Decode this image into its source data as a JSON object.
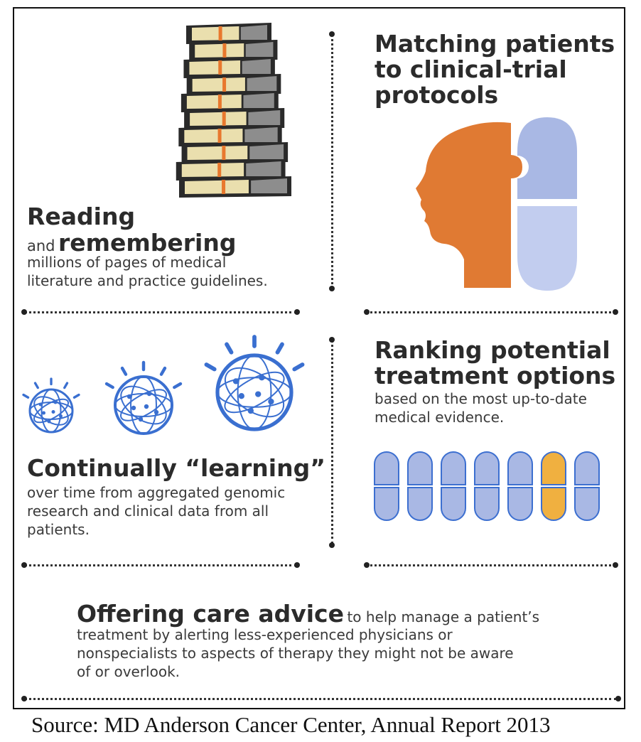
{
  "sections": {
    "reading": {
      "title": "Reading",
      "connector": "and",
      "title2": "remembering",
      "desc_lines": [
        "millions of pages of medical",
        "literature and practice guidelines."
      ]
    },
    "matching": {
      "title_lines": [
        "Matching patients",
        "to clinical-trial",
        "protocols"
      ]
    },
    "learning": {
      "title": "Continually “learning”",
      "desc_lines": [
        "over time from aggregated genomic",
        "research and clinical data from all",
        "patients."
      ]
    },
    "ranking": {
      "title_lines": [
        "Ranking potential",
        "treatment options"
      ],
      "desc_lines": [
        "based on the most up-to-date",
        "medical evidence."
      ],
      "pill_count": 7,
      "highlighted_index": 5
    },
    "advice": {
      "title": "Offering care advice",
      "first_line_rest": "to help manage a patient’s",
      "desc_lines": [
        "treatment by alerting less-experienced physicians or",
        "nonspecialists to aspects of therapy they might not be aware",
        "of or overlook."
      ]
    }
  },
  "colors": {
    "orange_head": "#e07a33",
    "pill_blue": "#a9b8e4",
    "pill_outline": "#3c6fd0",
    "pill_highlight": "#f0b040",
    "globe_blue": "#3a6fd0"
  },
  "source": "Source:  MD Anderson Cancer Center, Annual Report 2013"
}
